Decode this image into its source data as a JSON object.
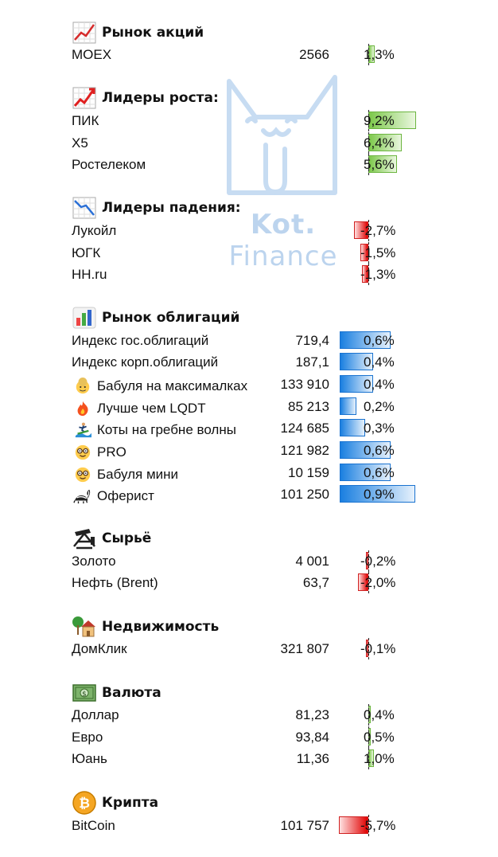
{
  "watermark": {
    "line1": "Kot.",
    "line2": "Finance"
  },
  "sections": [
    {
      "key": "stocks",
      "title": "Рынок акций",
      "icon": "chart-up-icon",
      "axis": 463,
      "rows": [
        {
          "name": "MOEX",
          "value": "2566",
          "pct": "1,3%",
          "change": 1.3
        }
      ]
    },
    {
      "key": "gainers",
      "title": "Лидеры роста:",
      "icon": "trend-up-icon",
      "axis": 463,
      "rows": [
        {
          "name": "ПИК",
          "value": "",
          "pct": "9,2%",
          "change": 9.2
        },
        {
          "name": "Х5",
          "value": "",
          "pct": "6,4%",
          "change": 6.4
        },
        {
          "name": "Ростелеком",
          "value": "",
          "pct": "5,6%",
          "change": 5.6
        }
      ]
    },
    {
      "key": "losers",
      "title": "Лидеры падения:",
      "icon": "chart-down-icon",
      "axis": 463,
      "rows": [
        {
          "name": "Лукойл",
          "value": "",
          "pct": "-2,7%",
          "change": -2.7
        },
        {
          "name": "ЮГК",
          "value": "",
          "pct": "-1,5%",
          "change": -1.5
        },
        {
          "name": "HH.ru",
          "value": "",
          "pct": "-1,3%",
          "change": -1.3
        }
      ]
    },
    {
      "key": "bonds",
      "title": "Рынок облигаций",
      "icon": "bar-chart-icon",
      "axis": 427,
      "rows": [
        {
          "name": "Индекс гос.облигаций",
          "value": "719,4",
          "pct": "0,6%",
          "change": 0.6
        },
        {
          "name": "Индекс корп.облигаций",
          "value": "187,1",
          "pct": "0,4%",
          "change": 0.4
        },
        {
          "name": "Бабуля на максималках",
          "value": "133 910",
          "pct": "0,4%",
          "change": 0.4,
          "icon": "grandma-icon"
        },
        {
          "name": "Лучше чем LQDT",
          "value": "85 213",
          "pct": "0,2%",
          "change": 0.2,
          "icon": "fire-icon"
        },
        {
          "name": "Коты на гребне волны",
          "value": "124 685",
          "pct": "0,3%",
          "change": 0.3,
          "icon": "surfer-icon"
        },
        {
          "name": "PRO",
          "value": "121 982",
          "pct": "0,6%",
          "change": 0.6,
          "icon": "nerd-face-icon"
        },
        {
          "name": "Бабуля мини",
          "value": "10 159",
          "pct": "0,6%",
          "change": 0.6,
          "icon": "nerd-face-icon"
        },
        {
          "name": "Оферист",
          "value": "101 250",
          "pct": "0,9%",
          "change": 0.9,
          "icon": "skunk-icon"
        }
      ]
    },
    {
      "key": "commodities",
      "title": "Сырьё",
      "icon": "oil-derrick-icon",
      "axis": 463,
      "rows": [
        {
          "name": "Золото",
          "value": "4 001",
          "pct": "-0,2%",
          "change": -0.2
        },
        {
          "name": "Нефть (Brent)",
          "value": "63,7",
          "pct": "-2,0%",
          "change": -2.0
        }
      ]
    },
    {
      "key": "realty",
      "title": "Недвижимость",
      "icon": "house-icon",
      "axis": 463,
      "rows": [
        {
          "name": "ДомКлик",
          "value": "321 807",
          "pct": "-0,1%",
          "change": -0.1
        }
      ]
    },
    {
      "key": "fx",
      "title": "Валюта",
      "icon": "banknote-icon",
      "axis": 463,
      "rows": [
        {
          "name": "Доллар",
          "value": "81,23",
          "pct": "0,4%",
          "change": 0.4
        },
        {
          "name": "Евро",
          "value": "93,84",
          "pct": "0,5%",
          "change": 0.5
        },
        {
          "name": "Юань",
          "value": "11,36",
          "pct": "1,0%",
          "change": 1.0
        }
      ]
    },
    {
      "key": "crypto",
      "title": "Крипта",
      "icon": "bitcoin-icon",
      "axis": 463,
      "rows": [
        {
          "name": "BitCoin",
          "value": "101 757",
          "pct": "-5,7%",
          "change": -5.7
        }
      ]
    }
  ],
  "colors": {
    "positive": "#7cc84a",
    "negative": "#e00000",
    "bond": "#1a7fe0",
    "watermark": "#bcd4ee"
  }
}
